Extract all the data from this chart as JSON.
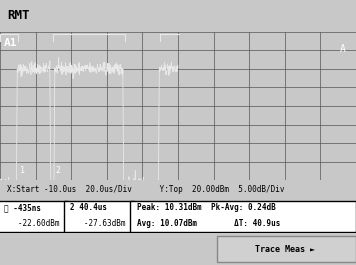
{
  "bg_color": "#1a1a1a",
  "outer_bg": "#c8c8c8",
  "grid_color": "#555555",
  "trace_color": "#e8e8e8",
  "title": "RMT",
  "label_A1": "A1",
  "label_A": "A",
  "x_label": "X:Start -10.0us  20.0us/Div",
  "y_label": "Y:Top  20.00dBm  5.00dB/Div",
  "marker1_time": "-435ns",
  "marker1_power": "-22.60dBm",
  "marker2_time": "40.4us",
  "marker2_power": "-27.63dBm",
  "peak": "Peak: 10.31dBm",
  "pk_avg": "Pk-Avg: 0.24dB",
  "avg": "Avg: 10.07dBm",
  "delta_t": "ΔT: 40.9us",
  "trace_meas": "Trace Meas ►",
  "n_cols": 10,
  "n_rows": 8
}
